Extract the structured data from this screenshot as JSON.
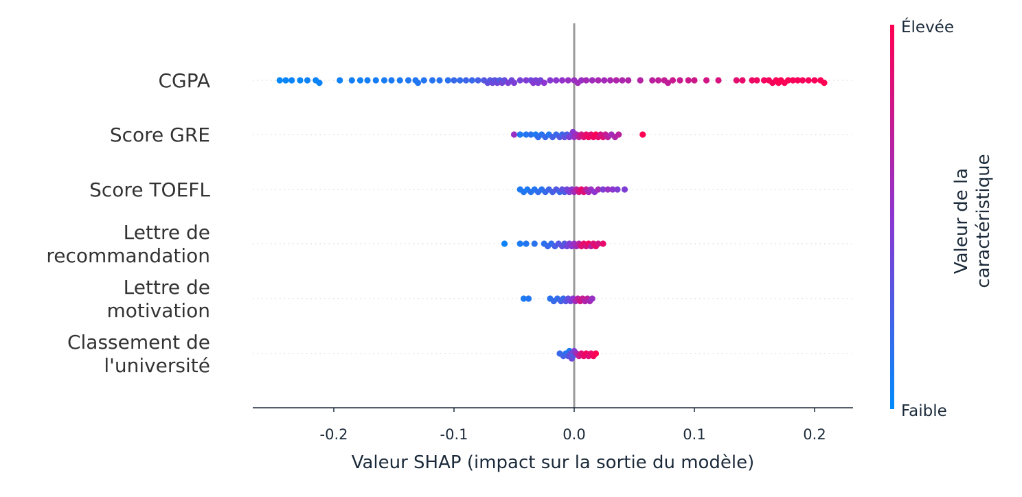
{
  "chart_data": {
    "type": "scatter",
    "subtype": "shap-beeswarm",
    "xlabel": "Valeur SHAP (impact sur la sortie du modèle)",
    "xlim": [
      -0.267,
      0.232
    ],
    "xticks": [
      -0.2,
      -0.1,
      0.0,
      0.1,
      0.2
    ],
    "xtick_labels": [
      "-0.2",
      "-0.1",
      "0.0",
      "0.1",
      "0.2"
    ],
    "grid": "dotted row guides",
    "colorbar": {
      "label_lines": [
        "Valeur de la",
        "caractéristique"
      ],
      "high_label": "Élevée",
      "low_label": "Faible",
      "low_color": "#008bfb",
      "mid_color": "#8c35d0",
      "high_color": "#ff0052",
      "placement": "right"
    },
    "point_format": [
      "shap_value",
      "feature_value_normalized"
    ],
    "features": [
      {
        "label_lines": [
          "CGPA"
        ],
        "points": [
          [
            -0.245,
            0.02
          ],
          [
            -0.24,
            0.03
          ],
          [
            -0.235,
            0.04
          ],
          [
            -0.228,
            0.03
          ],
          [
            -0.222,
            0.05
          ],
          [
            -0.215,
            0.04
          ],
          [
            -0.212,
            0.05
          ],
          [
            -0.195,
            0.06
          ],
          [
            -0.185,
            0.07
          ],
          [
            -0.178,
            0.06
          ],
          [
            -0.172,
            0.08
          ],
          [
            -0.165,
            0.08
          ],
          [
            -0.158,
            0.09
          ],
          [
            -0.152,
            0.1
          ],
          [
            -0.145,
            0.1
          ],
          [
            -0.138,
            0.11
          ],
          [
            -0.132,
            0.12
          ],
          [
            -0.13,
            0.12
          ],
          [
            -0.125,
            0.13
          ],
          [
            -0.118,
            0.14
          ],
          [
            -0.112,
            0.14
          ],
          [
            -0.105,
            0.15
          ],
          [
            -0.1,
            0.2
          ],
          [
            -0.095,
            0.18
          ],
          [
            -0.09,
            0.22
          ],
          [
            -0.085,
            0.2
          ],
          [
            -0.08,
            0.25
          ],
          [
            -0.075,
            0.3
          ],
          [
            -0.072,
            0.35
          ],
          [
            -0.07,
            0.3
          ],
          [
            -0.068,
            0.38
          ],
          [
            -0.066,
            0.33
          ],
          [
            -0.064,
            0.4
          ],
          [
            -0.062,
            0.28
          ],
          [
            -0.06,
            0.42
          ],
          [
            -0.058,
            0.36
          ],
          [
            -0.055,
            0.45
          ],
          [
            -0.052,
            0.4
          ],
          [
            -0.05,
            0.44
          ],
          [
            -0.045,
            0.42
          ],
          [
            -0.04,
            0.46
          ],
          [
            -0.036,
            0.4
          ],
          [
            -0.034,
            0.48
          ],
          [
            -0.032,
            0.44
          ],
          [
            -0.03,
            0.46
          ],
          [
            -0.028,
            0.42
          ],
          [
            -0.025,
            0.5
          ],
          [
            -0.02,
            0.48
          ],
          [
            -0.015,
            0.5
          ],
          [
            -0.01,
            0.52
          ],
          [
            -0.005,
            0.55
          ],
          [
            0.0,
            0.56
          ],
          [
            0.003,
            0.58
          ],
          [
            0.006,
            0.55
          ],
          [
            0.01,
            0.6
          ],
          [
            0.015,
            0.58
          ],
          [
            0.02,
            0.62
          ],
          [
            0.025,
            0.6
          ],
          [
            0.03,
            0.62
          ],
          [
            0.035,
            0.65
          ],
          [
            0.04,
            0.64
          ],
          [
            0.045,
            0.66
          ],
          [
            0.055,
            0.68
          ],
          [
            0.065,
            0.7
          ],
          [
            0.07,
            0.72
          ],
          [
            0.075,
            0.74
          ],
          [
            0.078,
            0.72
          ],
          [
            0.082,
            0.76
          ],
          [
            0.088,
            0.75
          ],
          [
            0.095,
            0.78
          ],
          [
            0.1,
            0.78
          ],
          [
            0.11,
            0.8
          ],
          [
            0.12,
            0.82
          ],
          [
            0.135,
            0.88
          ],
          [
            0.14,
            0.9
          ],
          [
            0.148,
            0.92
          ],
          [
            0.152,
            0.94
          ],
          [
            0.158,
            0.95
          ],
          [
            0.162,
            0.96
          ],
          [
            0.165,
            0.97
          ],
          [
            0.168,
            0.98
          ],
          [
            0.17,
            0.99
          ],
          [
            0.172,
            1.0
          ],
          [
            0.175,
            0.98
          ],
          [
            0.178,
            0.99
          ],
          [
            0.182,
            0.97
          ],
          [
            0.186,
            0.98
          ],
          [
            0.19,
            0.96
          ],
          [
            0.195,
            0.97
          ],
          [
            0.2,
            0.98
          ],
          [
            0.205,
            0.99
          ],
          [
            0.208,
            1.0
          ]
        ]
      },
      {
        "label_lines": [
          "Score GRE"
        ],
        "points": [
          [
            -0.05,
            0.55
          ],
          [
            -0.045,
            0.1
          ],
          [
            -0.04,
            0.12
          ],
          [
            -0.036,
            0.15
          ],
          [
            -0.032,
            0.1
          ],
          [
            -0.03,
            0.18
          ],
          [
            -0.027,
            0.15
          ],
          [
            -0.024,
            0.2
          ],
          [
            -0.021,
            0.12
          ],
          [
            -0.018,
            0.25
          ],
          [
            -0.015,
            0.2
          ],
          [
            -0.012,
            0.3
          ],
          [
            -0.01,
            0.22
          ],
          [
            -0.008,
            0.35
          ],
          [
            -0.006,
            0.28
          ],
          [
            -0.004,
            0.45
          ],
          [
            -0.002,
            0.4
          ],
          [
            -0.001,
            0.5
          ],
          [
            0.0,
            0.55
          ],
          [
            0.002,
            0.6
          ],
          [
            0.004,
            0.7
          ],
          [
            0.006,
            0.8
          ],
          [
            0.008,
            0.85
          ],
          [
            0.01,
            0.9
          ],
          [
            0.012,
            0.95
          ],
          [
            0.014,
            0.88
          ],
          [
            0.016,
            0.92
          ],
          [
            0.018,
            1.0
          ],
          [
            0.02,
            0.9
          ],
          [
            0.022,
            0.8
          ],
          [
            0.024,
            0.85
          ],
          [
            0.026,
            0.75
          ],
          [
            0.028,
            0.7
          ],
          [
            0.031,
            0.6
          ],
          [
            0.034,
            0.65
          ],
          [
            0.037,
            0.7
          ],
          [
            0.057,
            1.0
          ]
        ]
      },
      {
        "label_lines": [
          "Score TOEFL"
        ],
        "points": [
          [
            -0.045,
            0.1
          ],
          [
            -0.042,
            0.12
          ],
          [
            -0.039,
            0.1
          ],
          [
            -0.036,
            0.15
          ],
          [
            -0.033,
            0.12
          ],
          [
            -0.03,
            0.18
          ],
          [
            -0.027,
            0.15
          ],
          [
            -0.024,
            0.2
          ],
          [
            -0.021,
            0.22
          ],
          [
            -0.018,
            0.25
          ],
          [
            -0.015,
            0.3
          ],
          [
            -0.012,
            0.2
          ],
          [
            -0.01,
            0.35
          ],
          [
            -0.008,
            0.28
          ],
          [
            -0.006,
            0.4
          ],
          [
            -0.004,
            0.45
          ],
          [
            -0.002,
            0.5
          ],
          [
            0.0,
            0.6
          ],
          [
            0.002,
            0.7
          ],
          [
            0.004,
            0.8
          ],
          [
            0.006,
            0.9
          ],
          [
            0.008,
            0.85
          ],
          [
            0.01,
            0.7
          ],
          [
            0.012,
            0.6
          ],
          [
            0.014,
            0.55
          ],
          [
            0.017,
            0.5
          ],
          [
            0.02,
            0.6
          ],
          [
            0.024,
            0.45
          ],
          [
            0.028,
            0.55
          ],
          [
            0.032,
            0.5
          ],
          [
            0.036,
            0.45
          ],
          [
            0.042,
            0.45
          ]
        ]
      },
      {
        "label_lines": [
          "Lettre de",
          "recommandation"
        ],
        "points": [
          [
            -0.058,
            0.05
          ],
          [
            -0.045,
            0.1
          ],
          [
            -0.04,
            0.12
          ],
          [
            -0.033,
            0.15
          ],
          [
            -0.025,
            0.15
          ],
          [
            -0.022,
            0.2
          ],
          [
            -0.019,
            0.18
          ],
          [
            -0.016,
            0.25
          ],
          [
            -0.013,
            0.3
          ],
          [
            -0.01,
            0.35
          ],
          [
            -0.008,
            0.3
          ],
          [
            -0.006,
            0.4
          ],
          [
            -0.004,
            0.45
          ],
          [
            -0.002,
            0.5
          ],
          [
            0.0,
            0.55
          ],
          [
            0.002,
            0.6
          ],
          [
            0.004,
            0.7
          ],
          [
            0.006,
            0.85
          ],
          [
            0.008,
            0.9
          ],
          [
            0.01,
            0.8
          ],
          [
            0.012,
            0.95
          ],
          [
            0.014,
            0.7
          ],
          [
            0.016,
            0.85
          ],
          [
            0.018,
            0.9
          ],
          [
            0.02,
            0.8
          ],
          [
            0.024,
            0.9
          ]
        ]
      },
      {
        "label_lines": [
          "Lettre de",
          "motivation"
        ],
        "points": [
          [
            -0.042,
            0.1
          ],
          [
            -0.038,
            0.12
          ],
          [
            -0.02,
            0.15
          ],
          [
            -0.017,
            0.2
          ],
          [
            -0.014,
            0.18
          ],
          [
            -0.011,
            0.25
          ],
          [
            -0.009,
            0.2
          ],
          [
            -0.007,
            0.3
          ],
          [
            -0.005,
            0.35
          ],
          [
            -0.003,
            0.4
          ],
          [
            -0.001,
            0.5
          ],
          [
            0.001,
            0.6
          ],
          [
            0.003,
            0.7
          ],
          [
            0.005,
            0.8
          ],
          [
            0.007,
            0.75
          ],
          [
            0.009,
            0.65
          ],
          [
            0.011,
            0.7
          ],
          [
            0.013,
            0.6
          ],
          [
            0.015,
            0.55
          ]
        ]
      },
      {
        "label_lines": [
          "Classement de",
          "l'université"
        ],
        "points": [
          [
            -0.012,
            0.2
          ],
          [
            -0.009,
            0.25
          ],
          [
            -0.007,
            0.15
          ],
          [
            -0.005,
            0.3
          ],
          [
            -0.004,
            0.1
          ],
          [
            -0.003,
            0.35
          ],
          [
            -0.002,
            0.4
          ],
          [
            -0.001,
            0.3
          ],
          [
            0.0,
            0.45
          ],
          [
            0.002,
            0.6
          ],
          [
            0.004,
            0.75
          ],
          [
            0.006,
            0.85
          ],
          [
            0.008,
            0.9
          ],
          [
            0.01,
            0.95
          ],
          [
            0.012,
            0.85
          ],
          [
            0.014,
            0.9
          ],
          [
            0.016,
            0.95
          ],
          [
            0.018,
            1.0
          ]
        ]
      }
    ]
  }
}
